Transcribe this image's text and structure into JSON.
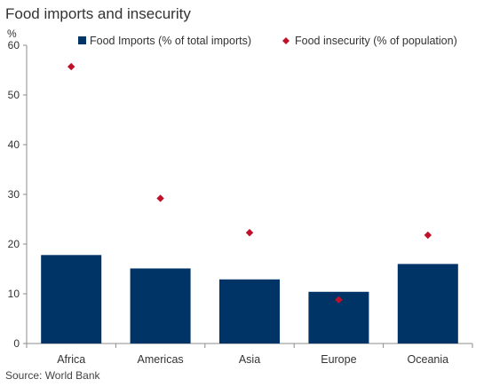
{
  "title": "Food imports and insecurity",
  "source": "Source: World Bank",
  "chart_data": {
    "type": "bar",
    "title": "Food imports and insecurity",
    "ylabel": "%",
    "xlabel": "",
    "ylim": [
      0,
      60
    ],
    "yticks": [
      0,
      10,
      20,
      30,
      40,
      50,
      60
    ],
    "grid": false,
    "legend_position": "top",
    "categories": [
      "Africa",
      "Americas",
      "Asia",
      "Europe",
      "Oceania"
    ],
    "series": [
      {
        "name": "Food Imports (% of total imports)",
        "kind": "bar",
        "color": "#003366",
        "values": [
          17.8,
          15.1,
          12.9,
          10.4,
          16.0
        ]
      },
      {
        "name": "Food insecurity (% of population)",
        "kind": "marker",
        "marker": "diamond",
        "color": "#C0102A",
        "values": [
          55.7,
          29.2,
          22.3,
          8.8,
          21.8
        ]
      }
    ]
  }
}
